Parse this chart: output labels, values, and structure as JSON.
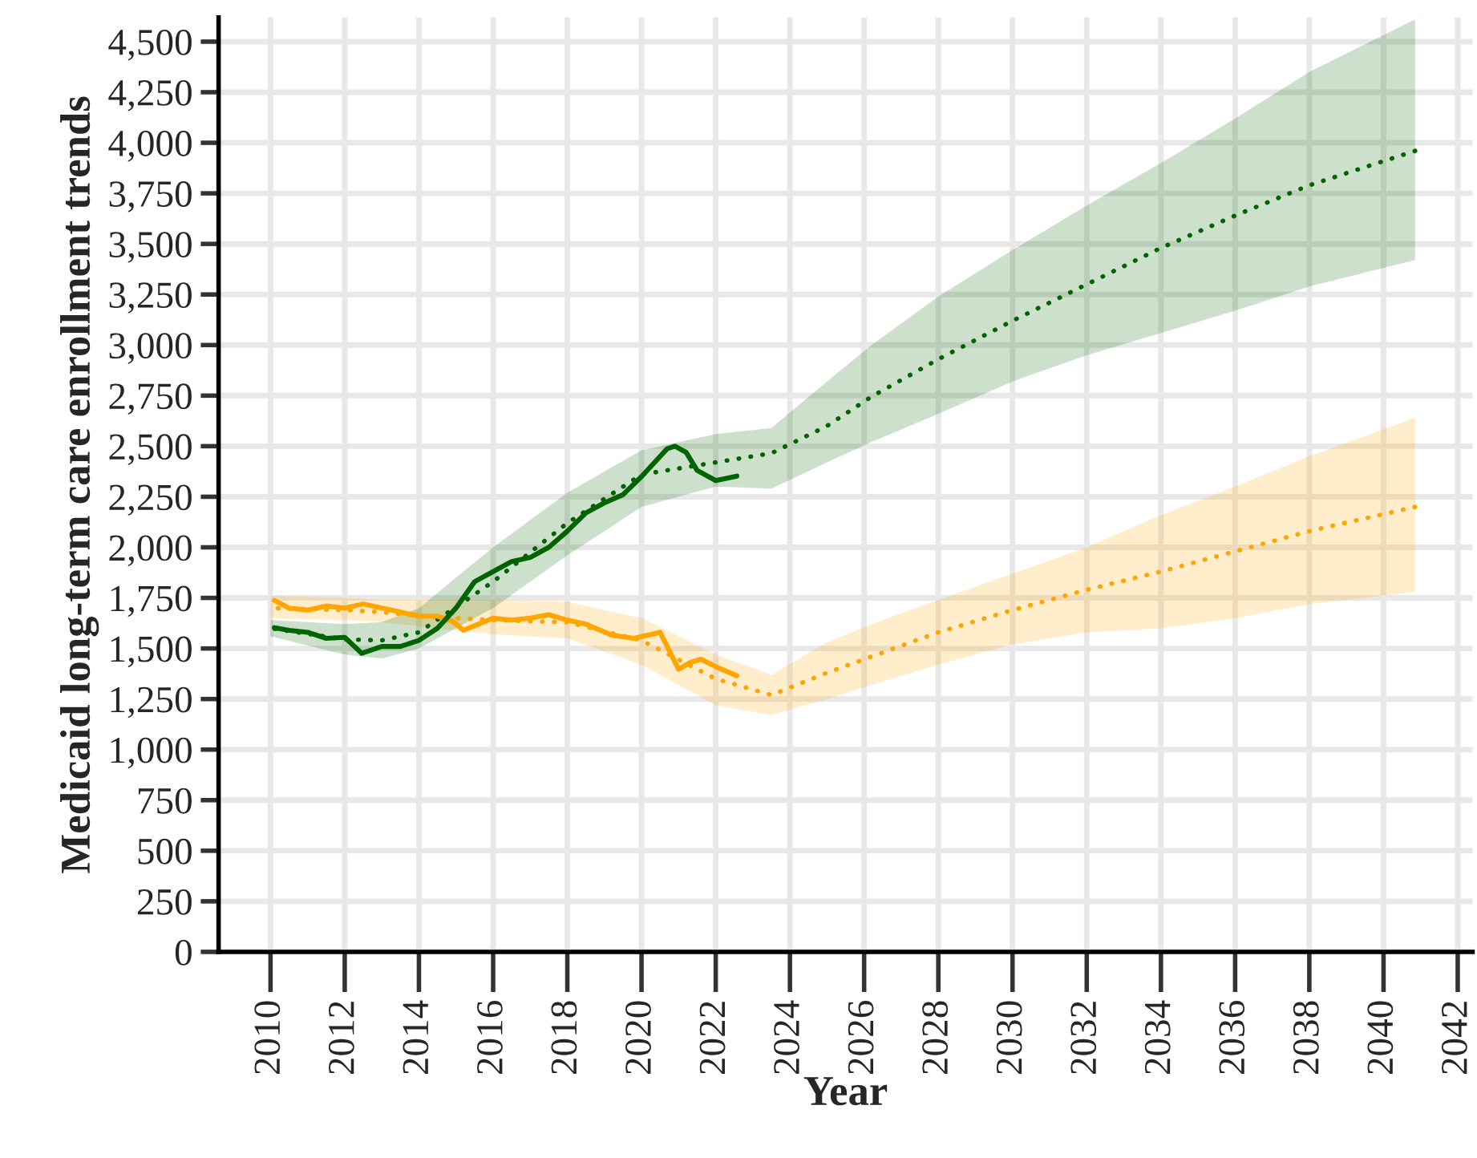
{
  "chart_data": {
    "type": "line",
    "xlabel": "Year",
    "ylabel": "Medicaid long-term care enrollment trends",
    "xlim": [
      2008.6,
      2042.4
    ],
    "xticks": [
      2010,
      2012,
      2014,
      2016,
      2018,
      2020,
      2022,
      2024,
      2026,
      2028,
      2030,
      2032,
      2034,
      2036,
      2038,
      2040,
      2042
    ],
    "ylim": [
      0,
      4620
    ],
    "yticks": [
      0,
      250,
      500,
      750,
      {
        "value": 1000,
        "label": "1,000"
      },
      {
        "value": 1250,
        "label": "1,250"
      },
      {
        "value": 1500,
        "label": "1,500"
      },
      {
        "value": 1750,
        "label": "1,750"
      },
      {
        "value": 2000,
        "label": "2,000"
      },
      {
        "value": 2250,
        "label": "2,250"
      },
      {
        "value": 2500,
        "label": "2,500"
      },
      {
        "value": 2750,
        "label": "2,750"
      },
      {
        "value": 3000,
        "label": "3,000"
      },
      {
        "value": 3250,
        "label": "3,250"
      },
      {
        "value": 3500,
        "label": "3,500"
      },
      {
        "value": 3750,
        "label": "3,750"
      },
      {
        "value": 4000,
        "label": "4,000"
      },
      {
        "value": 4250,
        "label": "4,250"
      },
      {
        "value": 4500,
        "label": "4,500"
      }
    ],
    "grid": true,
    "legend": false,
    "series": [
      {
        "color": "#ffa500",
        "line_style": "dotted",
        "x": [
          2010,
          2012,
          2013,
          2014,
          2016,
          2018,
          2020,
          2022,
          2023.5,
          2025,
          2026.2,
          2028,
          2030,
          2032,
          2034,
          2036,
          2038,
          2040.85
        ],
        "values": [
          1700,
          1690,
          1680,
          1660,
          1640,
          1630,
          1540,
          1350,
          1270,
          1380,
          1460,
          1580,
          1690,
          1790,
          1880,
          1980,
          2080,
          2200
        ],
        "lower": [
          1650,
          1640,
          1630,
          1610,
          1570,
          1550,
          1420,
          1220,
          1170,
          1250,
          1320,
          1420,
          1520,
          1580,
          1600,
          1650,
          1720,
          1780
        ],
        "upper": [
          1760,
          1750,
          1740,
          1740,
          1740,
          1730,
          1650,
          1470,
          1370,
          1530,
          1620,
          1740,
          1870,
          2000,
          2160,
          2300,
          2450,
          2640
        ]
      },
      {
        "color": "#006400",
        "line_style": "dotted",
        "x": [
          2010,
          2012,
          2013,
          2014,
          2016,
          2018,
          2020,
          2022,
          2023.5,
          2025,
          2026.2,
          2028,
          2030,
          2032,
          2034,
          2036,
          2038,
          2040.85
        ],
        "values": [
          1600,
          1545,
          1540,
          1580,
          1830,
          2120,
          2360,
          2420,
          2465,
          2600,
          2745,
          2930,
          3120,
          3300,
          3480,
          3640,
          3790,
          3960
        ],
        "lower": [
          1560,
          1470,
          1450,
          1500,
          1700,
          1960,
          2200,
          2300,
          2290,
          2420,
          2520,
          2660,
          2820,
          2950,
          3060,
          3170,
          3290,
          3420
        ],
        "upper": [
          1640,
          1620,
          1630,
          1700,
          2000,
          2270,
          2480,
          2560,
          2590,
          2820,
          3000,
          3240,
          3470,
          3690,
          3900,
          4120,
          4350,
          4610
        ]
      },
      {
        "color": "#ffa500",
        "line_style": "solid",
        "x": [
          2010.1,
          2010.5,
          2011,
          2011.5,
          2012,
          2012.5,
          2013,
          2013.5,
          2014,
          2014.5,
          2014.9,
          2015.2,
          2015.6,
          2016,
          2016.5,
          2017,
          2017.5,
          2018,
          2018.5,
          2019.2,
          2019.8,
          2020.5,
          2021.0,
          2021.3,
          2021.6,
          2022,
          2022.57
        ],
        "values": [
          1738,
          1700,
          1690,
          1710,
          1700,
          1720,
          1700,
          1680,
          1660,
          1660,
          1635,
          1590,
          1620,
          1650,
          1640,
          1650,
          1667,
          1640,
          1620,
          1566,
          1550,
          1580,
          1397,
          1430,
          1447,
          1410,
          1365
        ]
      },
      {
        "color": "#006400",
        "line_style": "solid",
        "x": [
          2010.1,
          2010.5,
          2011,
          2011.5,
          2012,
          2012.46,
          2013,
          2013.5,
          2014,
          2014.5,
          2015,
          2015.5,
          2016,
          2016.5,
          2017,
          2017.5,
          2018,
          2018.5,
          2019,
          2019.5,
          2020,
          2020.69,
          2020.9,
          2021.2,
          2021.5,
          2022,
          2022.57
        ],
        "values": [
          1603,
          1590,
          1580,
          1550,
          1555,
          1476,
          1510,
          1510,
          1540,
          1600,
          1700,
          1830,
          1880,
          1930,
          1950,
          2000,
          2080,
          2170,
          2220,
          2260,
          2350,
          2487,
          2500,
          2470,
          2380,
          2330,
          2352
        ]
      }
    ]
  }
}
